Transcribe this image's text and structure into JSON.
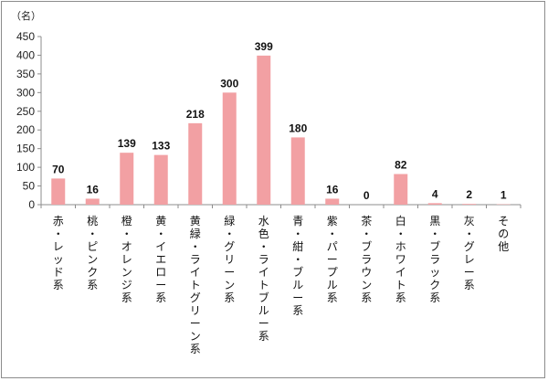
{
  "chart_data": {
    "type": "bar",
    "unit_label": "（名）",
    "categories": [
      "赤・レッド系",
      "桃・ピンク系",
      "橙・オレンジ系",
      "黄・イエロー系",
      "黄緑・ライトグリーン系",
      "緑・グリーン系",
      "水色・ライトブルー系",
      "青・紺・ブルー系",
      "紫・パープル系",
      "茶・ブラウン系",
      "白・ホワイト系",
      "黒・ブラック系",
      "灰・グレー系",
      "その他"
    ],
    "values": [
      70,
      16,
      139,
      133,
      218,
      300,
      399,
      180,
      16,
      0,
      82,
      4,
      2,
      1
    ],
    "ylim": [
      0,
      450
    ],
    "yticks": [
      0,
      50,
      100,
      150,
      200,
      250,
      300,
      350,
      400,
      450
    ],
    "grid": false,
    "legend": "none",
    "colors": {
      "bar": "#f2a0a3",
      "axis": "#8c8c8c"
    }
  }
}
